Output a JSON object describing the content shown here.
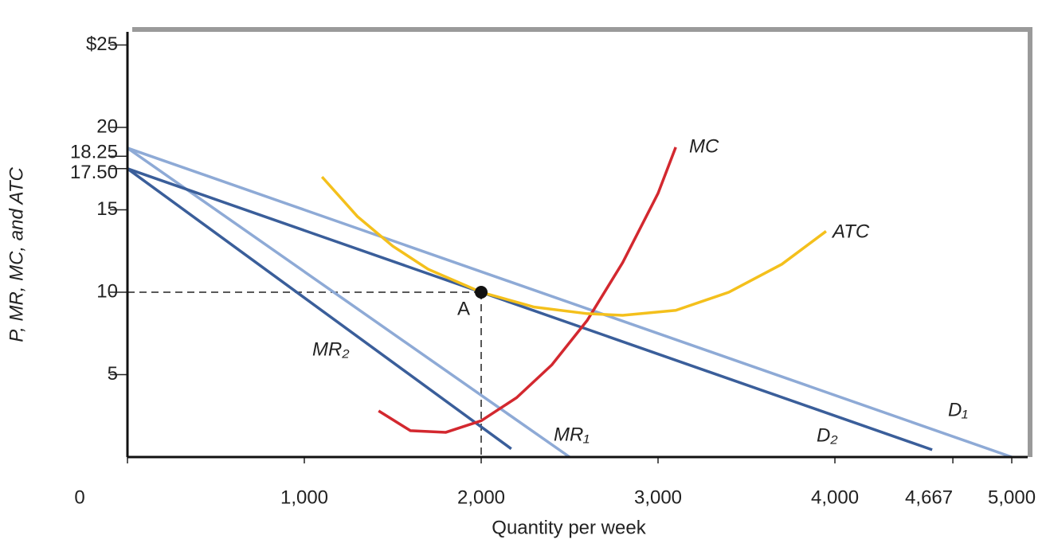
{
  "chart_data": {
    "type": "line",
    "xlabel": "Quantity per week",
    "ylabel": "P, MR, MC, and ATC",
    "xlim": [
      0,
      5090
    ],
    "ylim": [
      0,
      25.8
    ],
    "xticks": [
      0,
      {
        "value": 1000,
        "label": "1,000"
      },
      {
        "value": 2000,
        "label": "2,000"
      },
      {
        "value": 3000,
        "label": "3,000"
      },
      {
        "value": 4000,
        "label": "4,000"
      },
      {
        "value": 4667,
        "label": "4,667"
      },
      {
        "value": 5000,
        "label": "5,000"
      }
    ],
    "yticks": [
      5,
      10,
      15,
      {
        "value": 17.5,
        "label": "17.50"
      },
      18.25,
      20,
      {
        "value": 25,
        "label": "$25"
      }
    ],
    "series": [
      {
        "name": "D₁",
        "color": "#8eaad6",
        "x": [
          0,
          5000
        ],
        "values": [
          18.75,
          0
        ]
      },
      {
        "name": "MR₁",
        "color": "#8eaad6",
        "x": [
          0,
          2500
        ],
        "values": [
          18.75,
          0
        ]
      },
      {
        "name": "D₂",
        "color": "#3a5e9a",
        "x": [
          0,
          4550
        ],
        "values": [
          17.5,
          0.44
        ]
      },
      {
        "name": "MR₂",
        "color": "#3a5e9a",
        "x": [
          0,
          2170
        ],
        "values": [
          17.5,
          0.5
        ]
      },
      {
        "name": "MC",
        "color": "#d3282f",
        "x": [
          1420,
          1600,
          1800,
          2000,
          2200,
          2400,
          2600,
          2800,
          3000,
          3100
        ],
        "values": [
          2.8,
          1.6,
          1.5,
          2.2,
          3.6,
          5.6,
          8.3,
          11.8,
          16,
          18.8
        ]
      },
      {
        "name": "ATC",
        "color": "#f4c01c",
        "x": [
          1100,
          1300,
          1500,
          1700,
          2000,
          2300,
          2600,
          2800,
          3100,
          3400,
          3700,
          3950
        ],
        "values": [
          17,
          14.6,
          12.8,
          11.4,
          10,
          9.1,
          8.7,
          8.6,
          8.9,
          10,
          11.7,
          13.7
        ]
      }
    ],
    "points": [
      {
        "label": "A",
        "x": 2000,
        "y": 10
      }
    ]
  }
}
